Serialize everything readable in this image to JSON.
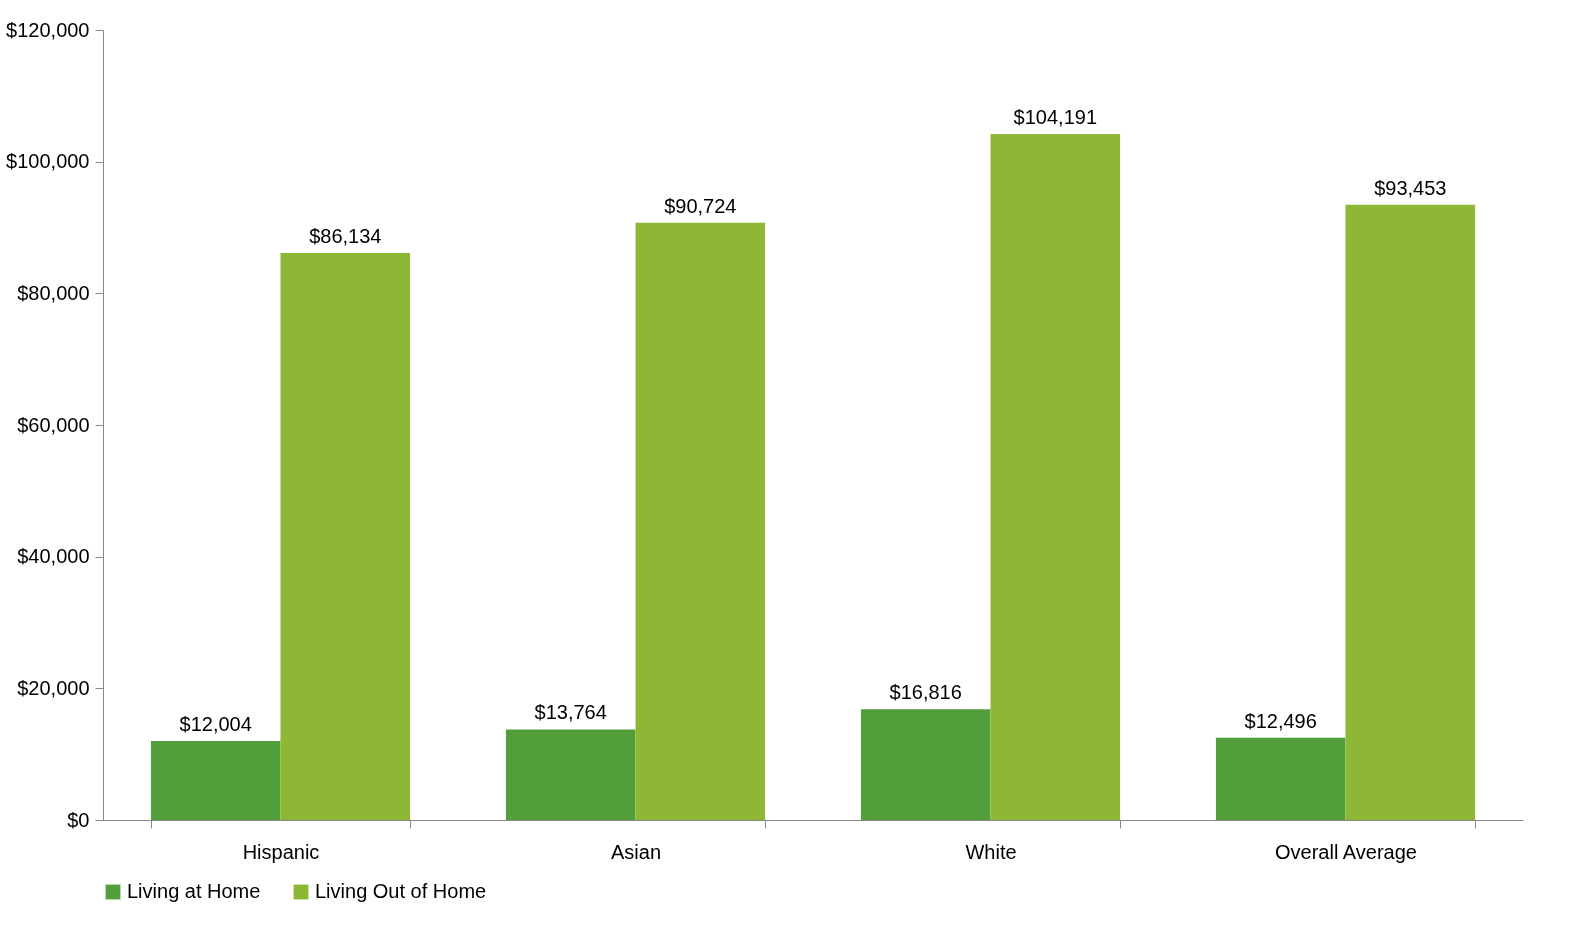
{
  "chart_data": {
    "type": "bar",
    "categories": [
      "Hispanic",
      "Asian",
      "White",
      "Overall Average"
    ],
    "series": [
      {
        "name": "Living at Home",
        "color": "#529e3a",
        "values": [
          12004,
          13764,
          16816,
          12496
        ],
        "value_labels": [
          "$12,004",
          "$13,764",
          "$16,816",
          "$12,496"
        ]
      },
      {
        "name": "Living Out of Home",
        "color": "#8db735",
        "values": [
          86134,
          90724,
          104191,
          93453
        ],
        "value_labels": [
          "$86,134",
          "$90,724",
          "$104,191",
          "$93,453"
        ]
      }
    ],
    "ylim": [
      0,
      120000
    ],
    "yticks": [
      {
        "value": 0,
        "label": "$0"
      },
      {
        "value": 20000,
        "label": "$20,000"
      },
      {
        "value": 40000,
        "label": "$40,000"
      },
      {
        "value": 60000,
        "label": "$60,000"
      },
      {
        "value": 80000,
        "label": "$80,000"
      },
      {
        "value": 100000,
        "label": "$100,000"
      },
      {
        "value": 120000,
        "label": "$120,000"
      }
    ],
    "grid": false,
    "legend": "bottom"
  }
}
